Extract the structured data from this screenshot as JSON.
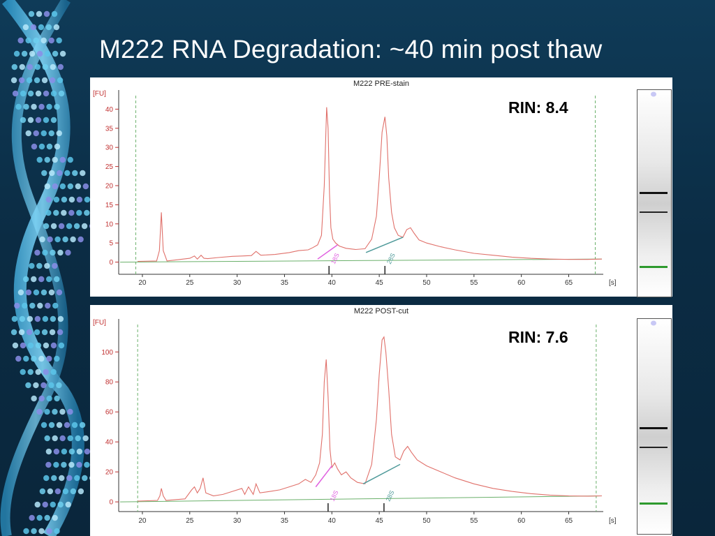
{
  "slide": {
    "title": "M222 RNA Degradation: ~40 min post thaw"
  },
  "colors": {
    "background": "#0b2c44",
    "trace": "#e0706a",
    "baseline": "#6ab06a",
    "marker_band": "#2e9a2e",
    "peak_18s_fit": "#e060e0",
    "peak_28s_fit": "#4f9a9a"
  },
  "icons": [
    "dna-helix-art"
  ],
  "chart_data": [
    {
      "type": "line",
      "title": "M222 PRE-stain",
      "rin_label": "RIN: 8.4",
      "ylabel": "[FU]",
      "xlabel": "[s]",
      "xlim": [
        17.5,
        68.5
      ],
      "ylim": [
        -3,
        45
      ],
      "xticks": [
        "20",
        "25",
        "30",
        "35",
        "40",
        "45",
        "50",
        "55",
        "60",
        "65"
      ],
      "yticks": [
        "0",
        "5",
        "10",
        "15",
        "20",
        "25",
        "30",
        "35",
        "40"
      ],
      "dashed_lines": [
        19.3,
        67.8
      ],
      "peak_labels": [
        {
          "text": "18S",
          "x": 39.7
        },
        {
          "text": "28S",
          "x": 45.6
        }
      ],
      "series": [
        {
          "x": [
            19.5,
            21.5,
            21.8,
            22.0,
            22.2,
            22.6,
            25.0,
            25.5,
            25.8,
            26.2,
            26.5,
            26.9,
            28.0,
            29.5,
            30.5,
            31.5,
            32.0,
            32.5,
            34.0,
            35.5,
            36.5,
            37.5,
            38.0,
            38.5,
            38.9,
            39.2,
            39.45,
            39.6,
            39.75,
            39.9,
            40.1,
            40.4,
            40.8,
            41.5,
            42.5,
            43.5,
            44.2,
            44.7,
            45.0,
            45.3,
            45.6,
            45.8,
            46.0,
            46.3,
            46.6,
            47.0,
            47.5,
            47.9,
            48.3,
            48.7,
            49.2,
            50.0,
            51.5,
            53.0,
            55.0,
            57.0,
            59.0,
            61.0,
            63.0,
            65.0,
            67.0,
            68.5
          ],
          "y": [
            0.2,
            0.3,
            3.0,
            13.0,
            3.0,
            0.3,
            1.0,
            1.6,
            0.8,
            1.8,
            1.0,
            0.9,
            1.2,
            1.5,
            1.6,
            1.7,
            2.8,
            1.8,
            2.0,
            2.5,
            3.0,
            3.2,
            3.8,
            4.5,
            7.0,
            20.0,
            40.5,
            35.0,
            18.0,
            9.0,
            6.0,
            5.0,
            4.2,
            3.6,
            3.3,
            3.5,
            6.0,
            12.0,
            22.0,
            34.0,
            38.0,
            33.0,
            22.0,
            13.0,
            9.0,
            7.0,
            6.5,
            8.5,
            9.0,
            7.5,
            5.8,
            5.0,
            4.0,
            3.2,
            2.3,
            1.8,
            1.3,
            1.0,
            0.8,
            0.7,
            0.7,
            0.8
          ]
        }
      ]
    },
    {
      "type": "line",
      "title": "M222 POST-cut",
      "rin_label": "RIN: 7.6",
      "ylabel": "[FU]",
      "xlabel": "[s]",
      "xlim": [
        17.5,
        68.5
      ],
      "ylim": [
        -6,
        122
      ],
      "xticks": [
        "20",
        "25",
        "30",
        "35",
        "40",
        "45",
        "50",
        "55",
        "60",
        "65"
      ],
      "yticks": [
        "0",
        "20",
        "40",
        "60",
        "80",
        "100"
      ],
      "dashed_lines": [
        19.5,
        67.9
      ],
      "peak_labels": [
        {
          "text": "18S",
          "x": 39.6
        },
        {
          "text": "28S",
          "x": 45.5
        }
      ],
      "series": [
        {
          "x": [
            19.5,
            21.6,
            21.85,
            22.0,
            22.2,
            22.5,
            24.5,
            25.2,
            25.5,
            25.8,
            26.1,
            26.4,
            26.7,
            27.5,
            28.5,
            29.5,
            30.5,
            30.8,
            31.2,
            31.7,
            32.0,
            32.4,
            33.5,
            34.5,
            35.5,
            36.5,
            37.2,
            37.8,
            38.3,
            38.7,
            39.0,
            39.2,
            39.4,
            39.6,
            39.8,
            40.0,
            40.3,
            40.6,
            41.0,
            41.5,
            42.0,
            42.7,
            43.5,
            44.2,
            44.7,
            45.0,
            45.3,
            45.5,
            45.7,
            46.0,
            46.3,
            46.7,
            47.2,
            47.6,
            48.0,
            48.4,
            49.0,
            50.0,
            51.5,
            53.0,
            55.0,
            57.0,
            59.0,
            61.0,
            63.0,
            65.0,
            67.0,
            68.5
          ],
          "y": [
            0.5,
            1.0,
            4.0,
            9.0,
            4.0,
            1.0,
            2.0,
            8.0,
            10.0,
            6.0,
            9.0,
            16.0,
            6.0,
            4.0,
            5.0,
            7.0,
            9.0,
            5.0,
            10.0,
            5.0,
            12.0,
            6.0,
            7.0,
            8.0,
            10.0,
            12.0,
            15.0,
            13.0,
            18.0,
            26.0,
            45.0,
            80.0,
            95.0,
            70.0,
            35.0,
            23.0,
            26.0,
            22.0,
            18.0,
            20.0,
            16.0,
            13.0,
            12.0,
            25.0,
            55.0,
            85.0,
            108.0,
            110.0,
            100.0,
            75.0,
            45.0,
            30.0,
            28.0,
            34.0,
            37.0,
            33.0,
            28.0,
            24.0,
            20.0,
            16.0,
            12.0,
            9.0,
            7.0,
            5.5,
            4.5,
            4.0,
            3.8,
            4.0
          ]
        }
      ]
    }
  ]
}
